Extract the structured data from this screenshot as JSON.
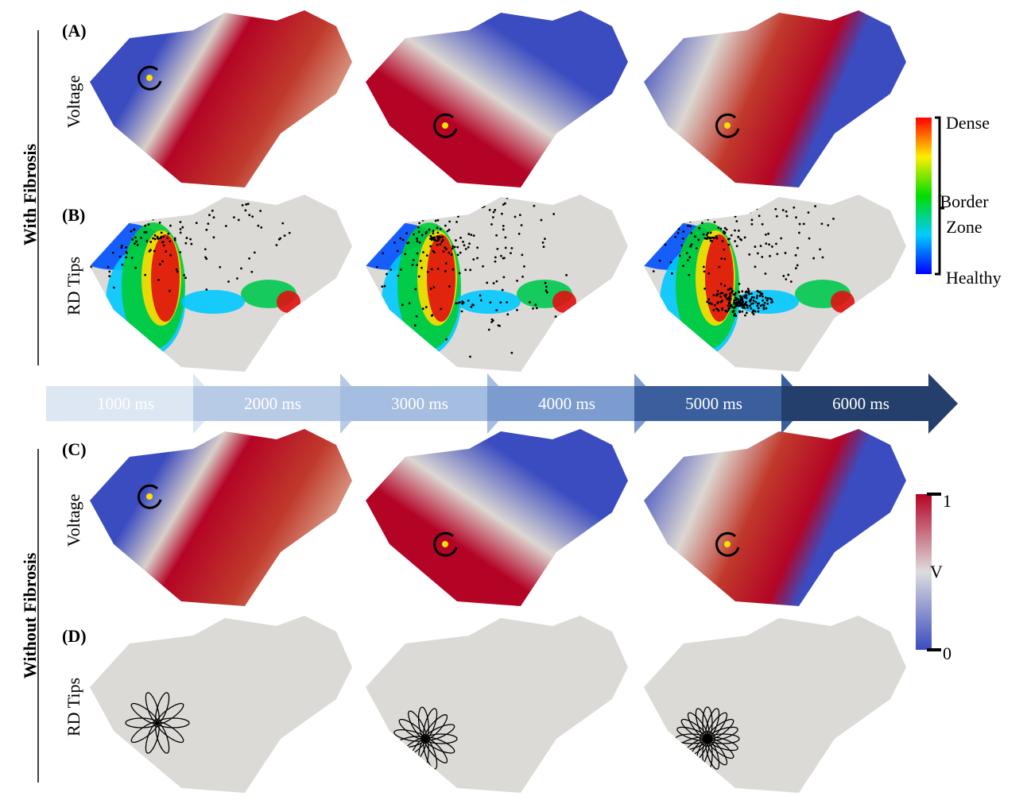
{
  "groups": [
    {
      "label": "With Fibrosis",
      "rows": [
        {
          "panel": "(A)",
          "row_label": "Voltage"
        },
        {
          "panel": "(B)",
          "row_label": "RD Tips"
        }
      ]
    },
    {
      "label": "Without Fibrosis",
      "rows": [
        {
          "panel": "(C)",
          "row_label": "Voltage"
        },
        {
          "panel": "(D)",
          "row_label": "RD Tips"
        }
      ]
    }
  ],
  "timeline": [
    "1000 ms",
    "2000 ms",
    "3000 ms",
    "4000 ms",
    "5000 ms",
    "6000 ms"
  ],
  "fibrosis_colorbar": {
    "top": "Dense",
    "middle": "Border Zone",
    "bottom": "Healthy"
  },
  "voltage_colorbar": {
    "max": "1",
    "unit": "V",
    "min": "0"
  }
}
